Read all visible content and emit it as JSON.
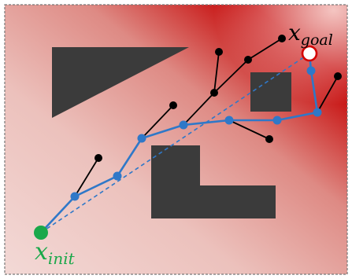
{
  "diagram": {
    "colors": {
      "field_low": "#f3d9d6",
      "field_mid": "#de8a84",
      "field_high": "#c40000",
      "border": "#777777",
      "obstacle": "#3b3b3b",
      "tree_edge": "#000000",
      "tree_node": "#000000",
      "path_edge": "#2f78c8",
      "path_node": "#2f78c8",
      "straight_line": "#2f78c8",
      "start_node": "#1aa84a",
      "goal_node": "#d40000"
    },
    "start_label": {
      "symbol": "x",
      "subscript": "init"
    },
    "goal_label": {
      "symbol": "x",
      "subscript": "goal"
    }
  }
}
